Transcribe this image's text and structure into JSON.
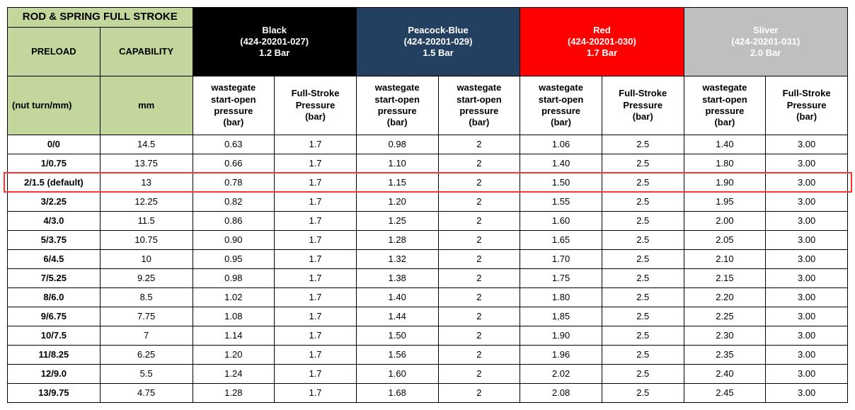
{
  "title": "ROD & SPRING FULL STROKE",
  "preload_label": "PRELOAD",
  "capability_label": "CAPABILITY",
  "preload_unit": "(nut turn/mm)",
  "capability_unit": "mm",
  "groups": [
    {
      "key": "black",
      "name": "Black",
      "part": "(424-20201-027)",
      "bar": "1.2 Bar",
      "bg": "#000000",
      "fg": "#ffffff",
      "col1": "wastegate start-open pressure (bar)",
      "col2": "Full-Stroke Pressure (bar)"
    },
    {
      "key": "blue",
      "name": "Peacock-Blue",
      "part": "(424-20201-029)",
      "bar": "1.5 Bar",
      "bg": "#244061",
      "fg": "#ffffff",
      "col1": "wastegate start-open pressure (bar)",
      "col2": "wastegate start-open pressure (bar)"
    },
    {
      "key": "red",
      "name": "Red",
      "part": "(424-20201-030)",
      "bar": "1.7 Bar",
      "bg": "#ff0000",
      "fg": "#ffffff",
      "col1": "wastegate start-open pressure (bar)",
      "col2": "Full-Stroke Pressure (bar)"
    },
    {
      "key": "silver",
      "name": "Sliver",
      "part": "(424-20201-031)",
      "bar": "2.0 Bar",
      "bg": "#bfbfbf",
      "fg": "#ffffff",
      "col1": "wastegate start-open pressure (bar)",
      "col2": "Full-Stroke Pressure (bar)"
    }
  ],
  "highlight_row_index": 2,
  "rows": [
    {
      "preload": "0/0",
      "mm": "14.5",
      "black": [
        "0.63",
        "1.7"
      ],
      "blue": [
        "0.98",
        "2"
      ],
      "red": [
        "1.06",
        "2.5"
      ],
      "silver": [
        "1.40",
        "3.00"
      ]
    },
    {
      "preload": "1/0.75",
      "mm": "13.75",
      "black": [
        "0.66",
        "1.7"
      ],
      "blue": [
        "1.10",
        "2"
      ],
      "red": [
        "1.40",
        "2.5"
      ],
      "silver": [
        "1.80",
        "3.00"
      ]
    },
    {
      "preload": "2/1.5 (default)",
      "mm": "13",
      "black": [
        "0.78",
        "1.7"
      ],
      "blue": [
        "1.15",
        "2"
      ],
      "red": [
        "1.50",
        "2.5"
      ],
      "silver": [
        "1.90",
        "3.00"
      ]
    },
    {
      "preload": "3/2.25",
      "mm": "12.25",
      "black": [
        "0.82",
        "1.7"
      ],
      "blue": [
        "1.20",
        "2"
      ],
      "red": [
        "1.55",
        "2.5"
      ],
      "silver": [
        "1.95",
        "3.00"
      ]
    },
    {
      "preload": "4/3.0",
      "mm": "11.5",
      "black": [
        "0.86",
        "1.7"
      ],
      "blue": [
        "1.25",
        "2"
      ],
      "red": [
        "1.60",
        "2.5"
      ],
      "silver": [
        "2.00",
        "3.00"
      ]
    },
    {
      "preload": "5/3.75",
      "mm": "10.75",
      "black": [
        "0.90",
        "1.7"
      ],
      "blue": [
        "1.28",
        "2"
      ],
      "red": [
        "1.65",
        "2.5"
      ],
      "silver": [
        "2.05",
        "3.00"
      ]
    },
    {
      "preload": "6/4.5",
      "mm": "10",
      "black": [
        "0.95",
        "1.7"
      ],
      "blue": [
        "1.32",
        "2"
      ],
      "red": [
        "1.70",
        "2.5"
      ],
      "silver": [
        "2.10",
        "3.00"
      ]
    },
    {
      "preload": "7/5.25",
      "mm": "9.25",
      "black": [
        "0.98",
        "1.7"
      ],
      "blue": [
        "1.38",
        "2"
      ],
      "red": [
        "1.75",
        "2.5"
      ],
      "silver": [
        "2.15",
        "3.00"
      ]
    },
    {
      "preload": "8/6.0",
      "mm": "8.5",
      "black": [
        "1.02",
        "1.7"
      ],
      "blue": [
        "1.40",
        "2"
      ],
      "red": [
        "1.80",
        "2.5"
      ],
      "silver": [
        "2.20",
        "3.00"
      ]
    },
    {
      "preload": "9/6.75",
      "mm": "7.75",
      "black": [
        "1.08",
        "1.7"
      ],
      "blue": [
        "1.44",
        "2"
      ],
      "red": [
        "1,85",
        "2.5"
      ],
      "silver": [
        "2.25",
        "3.00"
      ]
    },
    {
      "preload": "10/7.5",
      "mm": "7",
      "black": [
        "1.14",
        "1.7"
      ],
      "blue": [
        "1.50",
        "2"
      ],
      "red": [
        "1.90",
        "2.5"
      ],
      "silver": [
        "2.30",
        "3.00"
      ]
    },
    {
      "preload": "11/8.25",
      "mm": "6.25",
      "black": [
        "1.20",
        "1.7"
      ],
      "blue": [
        "1.56",
        "2"
      ],
      "red": [
        "1.96",
        "2.5"
      ],
      "silver": [
        "2.35",
        "3.00"
      ]
    },
    {
      "preload": "12/9.0",
      "mm": "5.5",
      "black": [
        "1.24",
        "1.7"
      ],
      "blue": [
        "1.60",
        "2"
      ],
      "red": [
        "2.02",
        "2.5"
      ],
      "silver": [
        "2.40",
        "3.00"
      ]
    },
    {
      "preload": "13/9.75",
      "mm": "4.75",
      "black": [
        "1.28",
        "1.7"
      ],
      "blue": [
        "1.68",
        "2"
      ],
      "red": [
        "2.08",
        "2.5"
      ],
      "silver": [
        "2.45",
        "3.00"
      ]
    }
  ]
}
